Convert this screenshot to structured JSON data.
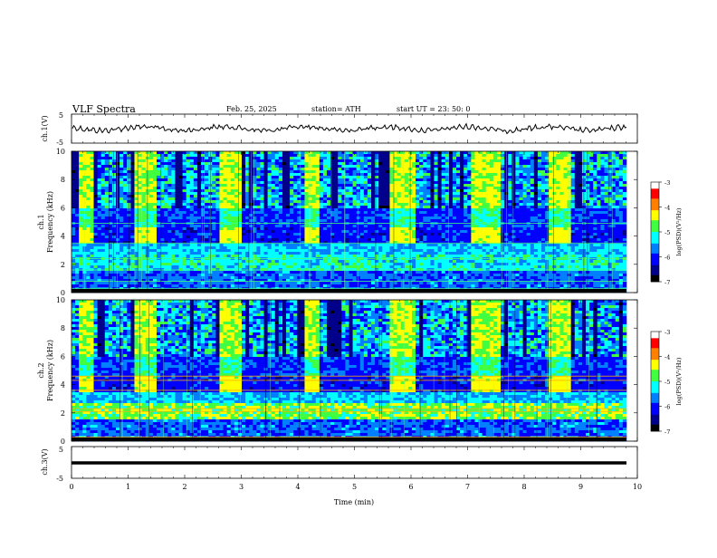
{
  "header": {
    "title": "VLF Spectra",
    "date": "Feb. 25, 2025",
    "station": "station= ATH",
    "start_ut": "start UT = 23: 50: 0"
  },
  "chart_data": [
    {
      "type": "line",
      "panel": "ch1-waveform",
      "ylabel": "ch.1(V)",
      "ylim": [
        -5,
        5
      ],
      "yticks": [
        "5",
        "-5"
      ],
      "series": [
        {
          "values_note_omitted": true
        }
      ],
      "trace_color": "#000000"
    },
    {
      "type": "heatmap",
      "panel": "ch1-spectrogram",
      "ylabel": "ch.1\nFrequency (kHz)",
      "ylabel_lines": [
        "ch.1",
        "Frequency (kHz)"
      ],
      "ylim": [
        0,
        10
      ],
      "yticks": [
        "0",
        "2",
        "4",
        "6",
        "8",
        "10"
      ],
      "colorbar": {
        "label": "log(PSD)(V²/Hz)",
        "ticks": [
          "-3",
          "-4",
          "-5",
          "-6",
          "-7"
        ],
        "range": [
          -7,
          -3
        ]
      },
      "bright_intervals_min": [
        [
          0.1,
          0.4
        ],
        [
          1.1,
          1.5
        ],
        [
          2.6,
          3.0
        ],
        [
          4.1,
          4.4
        ],
        [
          5.6,
          6.05
        ],
        [
          7.05,
          7.6
        ],
        [
          8.45,
          8.8
        ]
      ]
    },
    {
      "type": "heatmap",
      "panel": "ch2-spectrogram",
      "ylabel_lines": [
        "ch.2",
        "Frequency (kHz)"
      ],
      "ylim": [
        0,
        10
      ],
      "yticks": [
        "0",
        "2",
        "4",
        "6",
        "8",
        "10"
      ],
      "colorbar": {
        "label": "log(PSD)(V²/Hz)",
        "ticks": [
          "-3",
          "-4",
          "-5",
          "-6",
          "-7"
        ],
        "range": [
          -7,
          -3
        ]
      },
      "bright_intervals_min": [
        [
          0.1,
          0.4
        ],
        [
          1.1,
          1.5
        ],
        [
          2.6,
          3.0
        ],
        [
          4.1,
          4.4
        ],
        [
          5.6,
          6.05
        ],
        [
          7.05,
          7.6
        ],
        [
          8.45,
          8.8
        ]
      ]
    },
    {
      "type": "line",
      "panel": "ch3-waveform",
      "ylabel": "ch.3(V)",
      "ylim": [
        -5,
        5
      ],
      "yticks": [
        "5",
        "0",
        "-5"
      ],
      "trace_color": "#000000"
    }
  ],
  "xaxis": {
    "label": "Time (min)",
    "range": [
      0,
      10
    ],
    "ticks": [
      "0",
      "1",
      "2",
      "3",
      "4",
      "5",
      "6",
      "7",
      "8",
      "9",
      "10"
    ]
  },
  "colors": {
    "colormap": [
      "#000000",
      "#00008b",
      "#0000ff",
      "#0080ff",
      "#00ffff",
      "#40ff40",
      "#ffff00",
      "#ff8000",
      "#ff0000",
      "#ffffff"
    ]
  }
}
